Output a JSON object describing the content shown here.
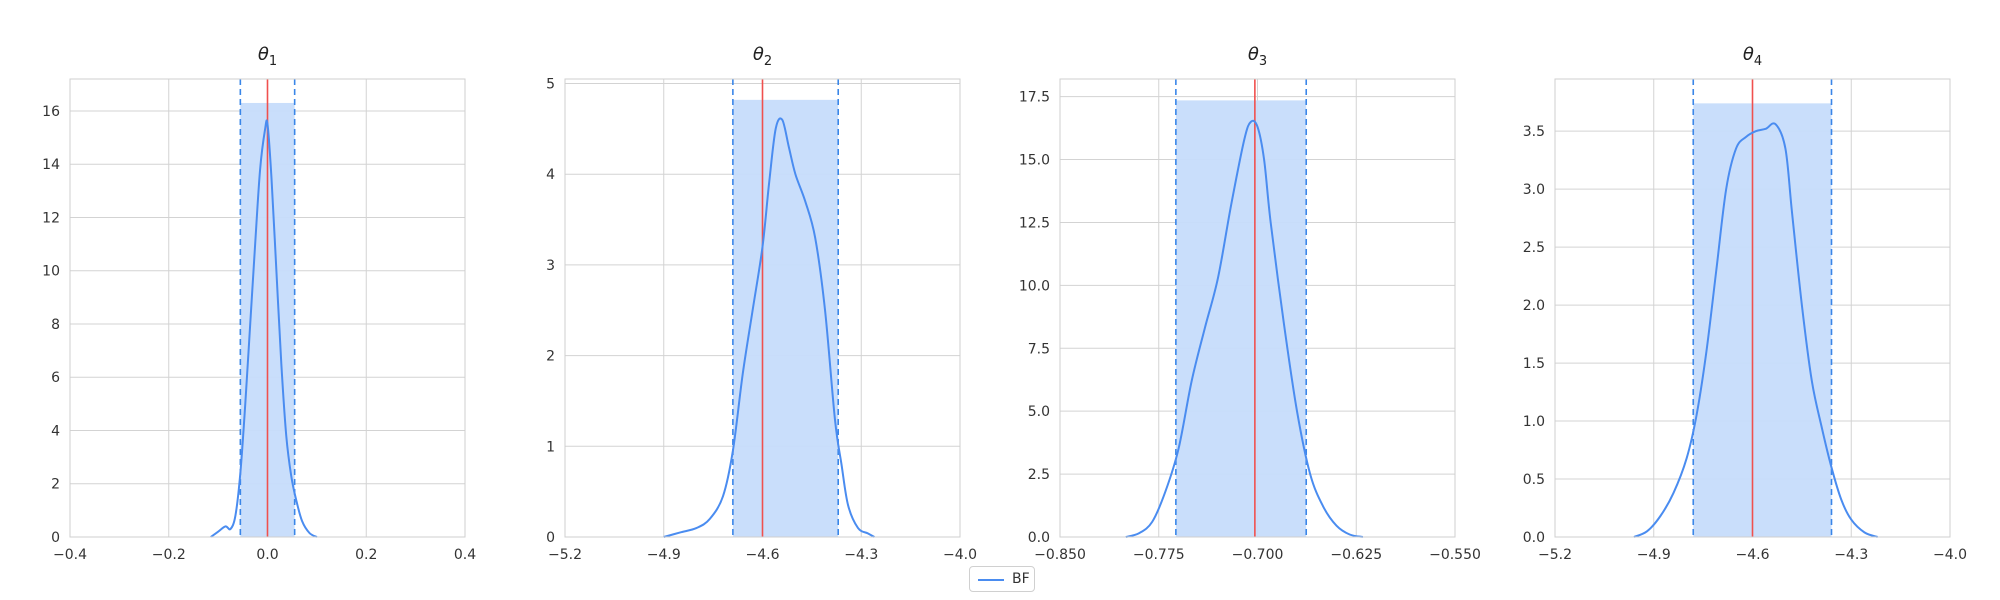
{
  "colors": {
    "kde": "#4a8cf0",
    "fill": "#c6dcfb",
    "interval": "#3a86e8",
    "truth": "#f0504e",
    "grid": "#d3d3d3",
    "axis": "#cfcfcf"
  },
  "legend": {
    "label": "BF",
    "placement": "bottom-center"
  },
  "chart_data": [
    {
      "type": "area",
      "title_symbol": "θ",
      "title_sub": "1",
      "xlim": [
        -0.4,
        0.4
      ],
      "ylim": [
        0,
        17.2
      ],
      "xticks": [
        -0.4,
        -0.2,
        0.0,
        0.2,
        0.4
      ],
      "xtick_labels": [
        "−0.4",
        "−0.2",
        "0.0",
        "0.2",
        "0.4"
      ],
      "yticks": [
        0,
        2,
        4,
        6,
        8,
        10,
        12,
        14,
        16
      ],
      "ytick_labels": [
        "0",
        "2",
        "4",
        "6",
        "8",
        "10",
        "12",
        "14",
        "16"
      ],
      "grid": true,
      "interval": [
        -0.055,
        0.055
      ],
      "interval_height": 16.3,
      "true_value": 0.0,
      "series": [
        {
          "name": "BF",
          "x": [
            -0.115,
            -0.1,
            -0.085,
            -0.075,
            -0.065,
            -0.055,
            -0.045,
            -0.035,
            -0.025,
            -0.015,
            -0.005,
            0.0,
            0.008,
            0.018,
            0.028,
            0.038,
            0.048,
            0.058,
            0.07,
            0.085,
            0.1
          ],
          "y": [
            0,
            0.2,
            0.4,
            0.3,
            0.8,
            2.4,
            5.0,
            8.0,
            11.0,
            13.8,
            15.3,
            15.5,
            13.5,
            10.0,
            6.5,
            3.8,
            2.3,
            1.4,
            0.6,
            0.15,
            0
          ]
        }
      ]
    },
    {
      "type": "area",
      "title_symbol": "θ",
      "title_sub": "2",
      "xlim": [
        -5.2,
        -4.0
      ],
      "ylim": [
        0,
        5.05
      ],
      "xticks": [
        -5.2,
        -4.9,
        -4.6,
        -4.3,
        -4.0
      ],
      "xtick_labels": [
        "−5.2",
        "−4.9",
        "−4.6",
        "−4.3",
        "−4.0"
      ],
      "yticks": [
        0,
        1,
        2,
        3,
        4,
        5
      ],
      "ytick_labels": [
        "0",
        "1",
        "2",
        "3",
        "4",
        "5"
      ],
      "grid": true,
      "interval": [
        -4.69,
        -4.37
      ],
      "interval_height": 4.82,
      "true_value": -4.6,
      "series": [
        {
          "name": "BF",
          "x": [
            -4.9,
            -4.85,
            -4.8,
            -4.76,
            -4.72,
            -4.69,
            -4.66,
            -4.63,
            -4.6,
            -4.58,
            -4.56,
            -4.54,
            -4.52,
            -4.5,
            -4.47,
            -4.44,
            -4.41,
            -4.38,
            -4.36,
            -4.34,
            -4.31,
            -4.28,
            -4.26
          ],
          "y": [
            0,
            0.05,
            0.1,
            0.2,
            0.45,
            0.95,
            1.8,
            2.5,
            3.2,
            3.9,
            4.5,
            4.6,
            4.3,
            4.0,
            3.7,
            3.3,
            2.5,
            1.3,
            0.8,
            0.35,
            0.1,
            0.04,
            0
          ]
        }
      ]
    },
    {
      "type": "area",
      "title_symbol": "θ",
      "title_sub": "3",
      "xlim": [
        -0.85,
        -0.55
      ],
      "ylim": [
        0,
        18.2
      ],
      "xticks": [
        -0.85,
        -0.775,
        -0.7,
        -0.625,
        -0.55
      ],
      "xtick_labels": [
        "−0.850",
        "−0.775",
        "−0.700",
        "−0.625",
        "−0.550"
      ],
      "yticks": [
        0,
        2.5,
        5.0,
        7.5,
        10.0,
        12.5,
        15.0,
        17.5
      ],
      "ytick_labels": [
        "0.0",
        "2.5",
        "5.0",
        "7.5",
        "10.0",
        "12.5",
        "15.0",
        "17.5"
      ],
      "grid": true,
      "interval": [
        -0.762,
        -0.663
      ],
      "interval_height": 17.35,
      "true_value": -0.702,
      "series": [
        {
          "name": "BF",
          "x": [
            -0.8,
            -0.79,
            -0.78,
            -0.77,
            -0.76,
            -0.75,
            -0.74,
            -0.73,
            -0.72,
            -0.71,
            -0.705,
            -0.7,
            -0.695,
            -0.69,
            -0.68,
            -0.67,
            -0.66,
            -0.65,
            -0.64,
            -0.63,
            -0.62
          ],
          "y": [
            0,
            0.15,
            0.6,
            1.8,
            3.5,
            6.2,
            8.3,
            10.3,
            13.2,
            15.8,
            16.5,
            16.3,
            15.0,
            12.5,
            8.5,
            5.0,
            2.5,
            1.2,
            0.45,
            0.1,
            0
          ]
        }
      ]
    },
    {
      "type": "area",
      "title_symbol": "θ",
      "title_sub": "4",
      "xlim": [
        -5.2,
        -4.0
      ],
      "ylim": [
        0,
        3.95
      ],
      "xticks": [
        -5.2,
        -4.9,
        -4.6,
        -4.3,
        -4.0
      ],
      "xtick_labels": [
        "−5.2",
        "−4.9",
        "−4.6",
        "−4.3",
        "−4.0"
      ],
      "yticks": [
        0,
        0.5,
        1.0,
        1.5,
        2.0,
        2.5,
        3.0,
        3.5
      ],
      "ytick_labels": [
        "0.0",
        "0.5",
        "1.0",
        "1.5",
        "2.0",
        "2.5",
        "3.0",
        "3.5"
      ],
      "grid": true,
      "interval": [
        -4.78,
        -4.36
      ],
      "interval_height": 3.74,
      "true_value": -4.6,
      "series": [
        {
          "name": "BF",
          "x": [
            -4.96,
            -4.92,
            -4.88,
            -4.84,
            -4.8,
            -4.77,
            -4.74,
            -4.71,
            -4.68,
            -4.65,
            -4.62,
            -4.59,
            -4.56,
            -4.53,
            -4.5,
            -4.48,
            -4.45,
            -4.42,
            -4.39,
            -4.36,
            -4.33,
            -4.3,
            -4.26,
            -4.22
          ],
          "y": [
            0,
            0.05,
            0.18,
            0.38,
            0.68,
            1.05,
            1.6,
            2.3,
            3.0,
            3.35,
            3.45,
            3.5,
            3.52,
            3.56,
            3.35,
            2.8,
            2.0,
            1.35,
            0.95,
            0.6,
            0.32,
            0.15,
            0.04,
            0
          ]
        }
      ]
    }
  ]
}
